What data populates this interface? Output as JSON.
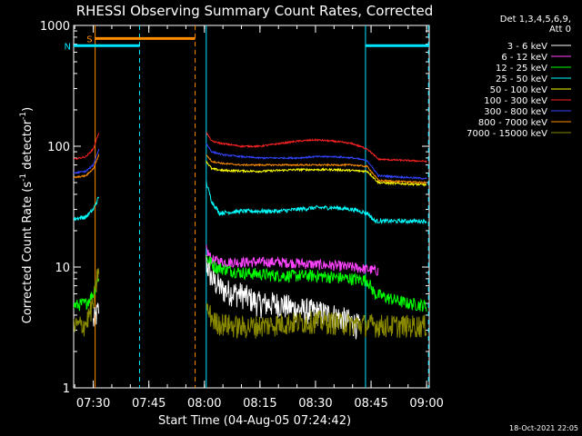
{
  "chart_data": {
    "type": "line",
    "title": "RHESSI Observing Summary Count Rates, Corrected",
    "xlabel": "Start Time (04-Aug-05 07:24:42)",
    "ylabel_parts": [
      "Corrected Count Rate (s",
      "-1",
      " detector",
      "-1",
      ")"
    ],
    "yscale": "log",
    "ylim": [
      1,
      1000
    ],
    "xlim": [
      "07:24:42",
      "09:00:42"
    ],
    "x_ticks": [
      "07:30",
      "07:45",
      "08:00",
      "08:15",
      "08:30",
      "08:45",
      "09:00"
    ],
    "y_ticks": [
      "1",
      "10",
      "100",
      "1000"
    ],
    "legend_title": [
      "Det 1,3,4,5,6,9,",
      "Att 0"
    ],
    "legend_position": "right",
    "timestamp": "18-Oct-2021 22:05",
    "flags": [
      {
        "label": "S",
        "color": "#ff8c00",
        "start": "07:30:30",
        "end": "07:57:30",
        "value": 780
      },
      {
        "label": "N",
        "color": "#00e5ff",
        "start": "07:24:42",
        "end": "07:42:30",
        "value": 680
      },
      {
        "label": "",
        "color": "#00e5ff",
        "start": "08:43:30",
        "end": "09:00:42",
        "value": 680
      }
    ],
    "markers": [
      {
        "time": "07:30:30",
        "color": "#ff8c00",
        "style": "solid"
      },
      {
        "time": "07:42:30",
        "color": "#00e5ff",
        "style": "dashed"
      },
      {
        "time": "07:57:30",
        "color": "#ff8c00",
        "style": "dashed"
      },
      {
        "time": "08:00:30",
        "color": "#00e5ff",
        "style": "solid"
      },
      {
        "time": "08:43:30",
        "color": "#00e5ff",
        "style": "solid"
      },
      {
        "time": "09:00:30",
        "color": "#00e5ff",
        "style": "dashed"
      }
    ],
    "series": [
      {
        "name": "3 - 6 keV",
        "color": "#ffffff",
        "noise": 0.25,
        "segments": [
          {
            "x": [
              "07:30:00",
              "07:31:30"
            ],
            "y": [
              3.5,
              4.5
            ]
          },
          {
            "x": [
              "08:00:30",
              "08:02:00",
              "08:05:00",
              "08:10:00",
              "08:15:00",
              "08:20:00",
              "08:25:00",
              "08:30:00",
              "08:35:00",
              "08:40:00",
              "08:42:00"
            ],
            "y": [
              11,
              8,
              6.5,
              6,
              5,
              5,
              4.5,
              4.3,
              4,
              3.5,
              3.2
            ]
          }
        ]
      },
      {
        "name": "6 - 12 keV",
        "color": "#ff44ff",
        "noise": 0.1,
        "segments": [
          {
            "x": [
              "08:00:30",
              "08:02:00",
              "08:05:00",
              "08:10:00",
              "08:15:00",
              "08:20:00",
              "08:25:00",
              "08:30:00",
              "08:35:00",
              "08:40:00",
              "08:45:00",
              "08:47:00"
            ],
            "y": [
              14,
              11.5,
              11,
              11,
              11,
              11,
              10.8,
              10.5,
              10.3,
              10,
              9.5,
              9.3
            ]
          }
        ]
      },
      {
        "name": "12 - 25 keV",
        "color": "#00ff00",
        "noise": 0.12,
        "segments": [
          {
            "x": [
              "07:24:42",
              "07:28:00",
              "07:30:00",
              "07:31:30"
            ],
            "y": [
              4.8,
              5,
              6,
              8.5
            ]
          },
          {
            "x": [
              "08:00:30",
              "08:03:00",
              "08:10:00",
              "08:20:00",
              "08:30:00",
              "08:40:00",
              "08:44:00",
              "08:46:00",
              "08:50:00",
              "08:55:00",
              "09:00:00"
            ],
            "y": [
              12,
              10,
              9,
              8.5,
              8.5,
              8,
              7.8,
              6,
              5.5,
              5,
              4.8
            ]
          }
        ]
      },
      {
        "name": "25 - 50 keV",
        "color": "#00ffff",
        "noise": 0.04,
        "segments": [
          {
            "x": [
              "07:24:42",
              "07:28:00",
              "07:30:00",
              "07:31:30"
            ],
            "y": [
              25,
              26,
              30,
              38
            ]
          },
          {
            "x": [
              "08:00:30",
              "08:02:00",
              "08:04:00",
              "08:10:00",
              "08:20:00",
              "08:30:00",
              "08:35:00",
              "08:40:00",
              "08:44:00",
              "08:46:00",
              "08:50:00",
              "09:00:00"
            ],
            "y": [
              50,
              35,
              28,
              29,
              29,
              31,
              31,
              30,
              28,
              24,
              24,
              24
            ]
          }
        ]
      },
      {
        "name": "50 - 100 keV",
        "color": "#ffff00",
        "noise": 0.02,
        "segments": [
          {
            "x": [
              "08:00:30",
              "08:02:00",
              "08:05:00",
              "08:15:00",
              "08:25:00",
              "08:35:00",
              "08:44:00",
              "08:47:00",
              "09:00:00"
            ],
            "y": [
              75,
              65,
              63,
              62,
              64,
              64,
              62,
              50,
              48
            ]
          }
        ]
      },
      {
        "name": "100 - 300 keV",
        "color": "#ff2222",
        "noise": 0.015,
        "segments": [
          {
            "x": [
              "07:24:42",
              "07:28:00",
              "07:30:00",
              "07:31:30"
            ],
            "y": [
              78,
              82,
              95,
              130
            ]
          },
          {
            "x": [
              "08:00:30",
              "08:02:00",
              "08:05:00",
              "08:10:00",
              "08:15:00",
              "08:20:00",
              "08:25:00",
              "08:30:00",
              "08:35:00",
              "08:40:00",
              "08:44:00",
              "08:47:00",
              "09:00:00"
            ],
            "y": [
              130,
              110,
              105,
              100,
              100,
              105,
              110,
              113,
              110,
              105,
              95,
              78,
              75
            ]
          }
        ]
      },
      {
        "name": "300 - 800 keV",
        "color": "#3344ff",
        "noise": 0.015,
        "segments": [
          {
            "x": [
              "07:24:42",
              "07:28:00",
              "07:30:00",
              "07:31:30"
            ],
            "y": [
              60,
              62,
              70,
              95
            ]
          },
          {
            "x": [
              "08:00:30",
              "08:02:00",
              "08:05:00",
              "08:10:00",
              "08:15:00",
              "08:20:00",
              "08:25:00",
              "08:30:00",
              "08:35:00",
              "08:40:00",
              "08:44:00",
              "08:47:00",
              "09:00:00"
            ],
            "y": [
              105,
              90,
              85,
              82,
              80,
              80,
              80,
              82,
              82,
              80,
              76,
              57,
              54
            ]
          }
        ]
      },
      {
        "name": "800 - 7000 keV",
        "color": "#ff8c00",
        "noise": 0.015,
        "segments": [
          {
            "x": [
              "07:24:42",
              "07:28:00",
              "07:30:00",
              "07:31:30"
            ],
            "y": [
              55,
              57,
              65,
              85
            ]
          },
          {
            "x": [
              "08:00:30",
              "08:02:00",
              "08:05:00",
              "08:10:00",
              "08:20:00",
              "08:30:00",
              "08:40:00",
              "08:44:00",
              "08:47:00",
              "09:00:00"
            ],
            "y": [
              85,
              75,
              72,
              70,
              70,
              70,
              70,
              68,
              52,
              50
            ]
          }
        ]
      },
      {
        "name": "7000 - 15000 keV",
        "color": "#888800",
        "noise": 0.22,
        "segments": [
          {
            "x": [
              "07:24:42",
              "07:28:00",
              "07:30:00",
              "07:31:30"
            ],
            "y": [
              3.2,
              3.4,
              5,
              10
            ]
          },
          {
            "x": [
              "08:00:30",
              "08:03:00",
              "08:10:00",
              "08:20:00",
              "08:30:00",
              "08:40:00",
              "08:50:00",
              "09:00:00"
            ],
            "y": [
              4.5,
              3.5,
              3.2,
              3.4,
              3.6,
              3.4,
              3.3,
              3.3
            ]
          }
        ]
      }
    ]
  }
}
